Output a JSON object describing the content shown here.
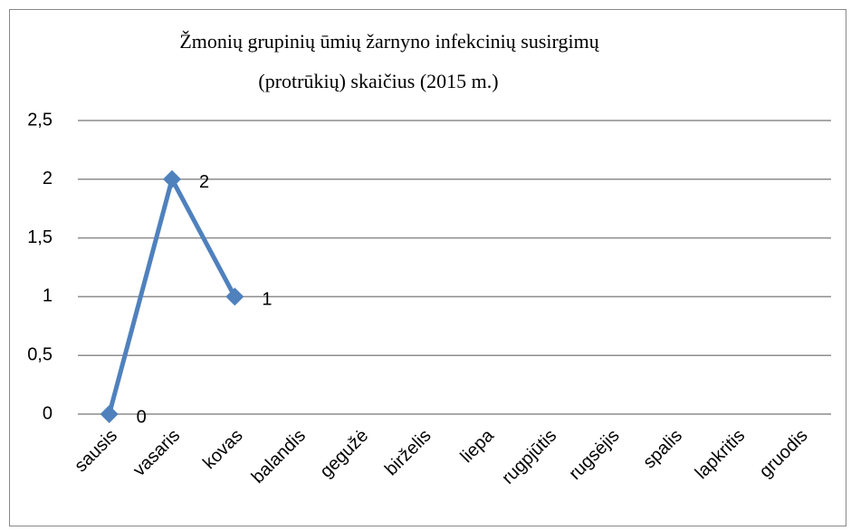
{
  "chart_data": {
    "type": "line",
    "title": [
      "Žmonių grupinių ūmių žarnyno infekcinių susirgimų",
      "(protrūkių) skaičius (2015  m.)"
    ],
    "categories": [
      "sausis",
      "vasaris",
      "kovas",
      "balandis",
      "gegužė",
      "birželis",
      "liepa",
      "rugpjūtis",
      "rugsėjis",
      "spalis",
      "lapkritis",
      "gruodis"
    ],
    "series": [
      {
        "color": "#4f81bd",
        "values": [
          0,
          2,
          1,
          null,
          null,
          null,
          null,
          null,
          null,
          null,
          null,
          null
        ]
      }
    ],
    "ylim": [
      0,
      2.5
    ],
    "yticks": [
      0,
      {
        "value": 0.5,
        "label": "0,5"
      },
      1,
      {
        "value": 1.5,
        "label": "1,5"
      },
      2,
      {
        "value": 2.5,
        "label": "2,5"
      }
    ],
    "grid": true,
    "data_labels": true
  }
}
